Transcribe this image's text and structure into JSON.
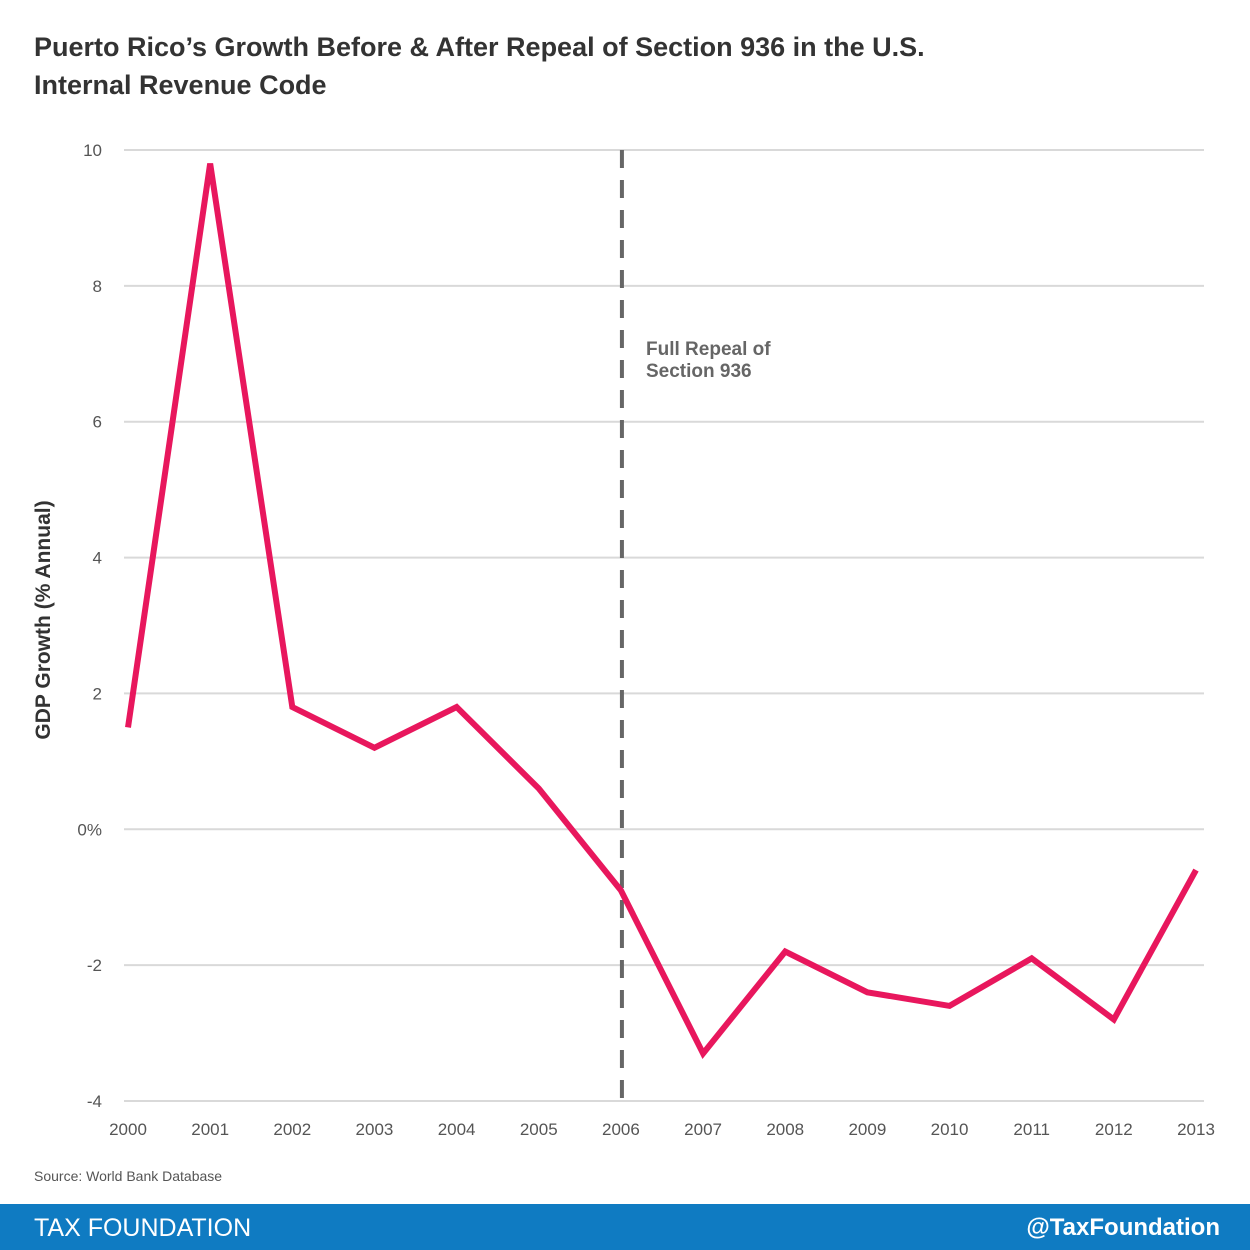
{
  "title": "Puerto Rico’s Growth Before & After Repeal of Section 936 in the U.S. Internal Revenue Code",
  "source": "Source: World Bank Database",
  "footer": {
    "brand": "TAX FOUNDATION",
    "handle": "@TaxFoundation",
    "color": "#0f7bc2"
  },
  "chart_data": {
    "type": "line",
    "title": "Puerto Rico’s Growth Before & After Repeal of Section 936 in the U.S. Internal Revenue Code",
    "xlabel": "",
    "ylabel": "GDP Growth (% Annual)",
    "ylim": [
      -4,
      10
    ],
    "yticks": [
      10,
      8,
      6,
      4,
      2,
      0,
      -2,
      -4
    ],
    "ytick_labels": [
      "10",
      "8",
      "6",
      "4",
      "2",
      "0%",
      "-2",
      "-4"
    ],
    "x": [
      "2000",
      "2001",
      "2002",
      "2003",
      "2004",
      "2005",
      "2006",
      "2007",
      "2008",
      "2009",
      "2010",
      "2011",
      "2012",
      "2013"
    ],
    "series": [
      {
        "values": [
          1.5,
          9.8,
          1.8,
          1.2,
          1.8,
          0.6,
          -0.9,
          -3.3,
          -1.8,
          -2.4,
          -2.6,
          -1.9,
          -2.8,
          -0.6
        ],
        "color": "#e8175d"
      }
    ],
    "grid": true,
    "annotation": {
      "x": "2006",
      "line1": "Full Repeal of",
      "line2": "Section 936",
      "style": "dashed",
      "color": "#666666"
    }
  }
}
